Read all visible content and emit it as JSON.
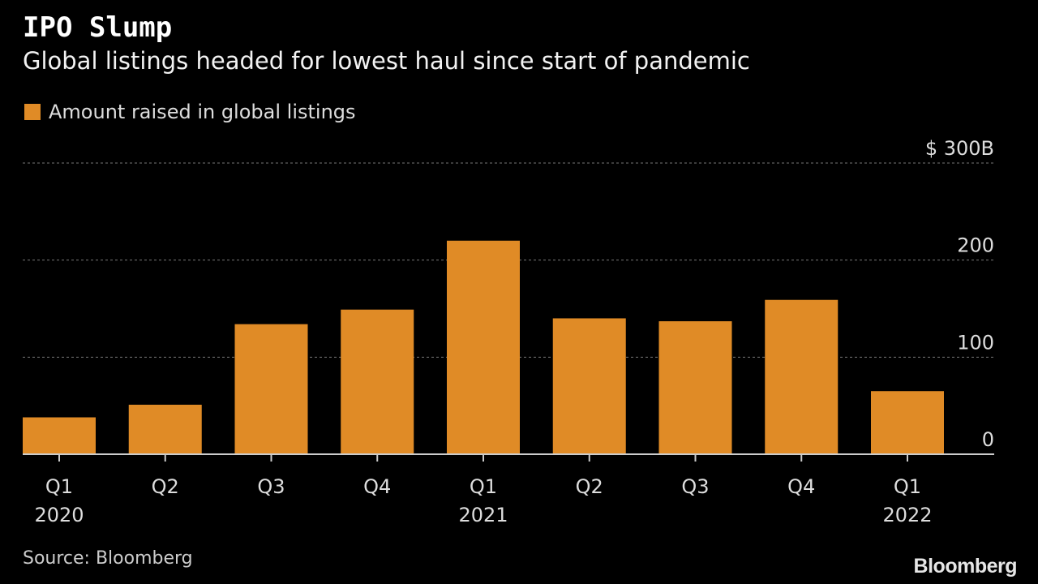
{
  "title": "IPO Slump",
  "subtitle": "Global listings headed for lowest haul since start of pandemic",
  "source": "Source: Bloomberg",
  "logo": "Bloomberg",
  "colors": {
    "bar": "#e08b26",
    "background": "#000000",
    "grid": "#777777"
  },
  "chart_data": {
    "type": "bar",
    "categories": [
      "Q1 2020",
      "Q2 2020",
      "Q3 2020",
      "Q4 2020",
      "Q1 2021",
      "Q2 2021",
      "Q3 2021",
      "Q4 2021",
      "Q1 2022"
    ],
    "tick_labels": [
      [
        "Q1",
        "2020"
      ],
      [
        "Q2",
        ""
      ],
      [
        "Q3",
        ""
      ],
      [
        "Q4",
        ""
      ],
      [
        "Q1",
        "2021"
      ],
      [
        "Q2",
        ""
      ],
      [
        "Q3",
        ""
      ],
      [
        "Q4",
        ""
      ],
      [
        "Q1",
        "2022"
      ]
    ],
    "series": [
      {
        "name": "Amount raised in global listings",
        "values": [
          38,
          51,
          134,
          149,
          220,
          140,
          137,
          159,
          65
        ]
      }
    ],
    "ylim": [
      0,
      300
    ],
    "yticks": [
      0,
      100,
      200,
      300
    ],
    "ytick_labels": [
      "0",
      "100",
      "200",
      "$ 300B"
    ],
    "grid": true,
    "legend": "top-left",
    "yaxis_position": "right"
  }
}
